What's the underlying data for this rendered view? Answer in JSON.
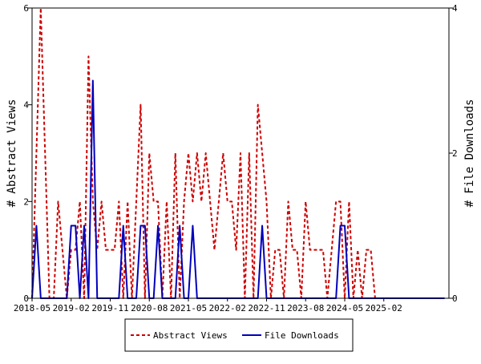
{
  "chart_data": {
    "type": "line",
    "title": "",
    "xlabel": "",
    "y_left_label": "# Abstract Views",
    "y_right_label": "# File Downloads",
    "y_left_lim": [
      0,
      6
    ],
    "y_right_lim": [
      0,
      4
    ],
    "y_left_ticks": [
      "0",
      "2",
      "4",
      "6"
    ],
    "y_right_ticks": [
      "0",
      "2",
      "4"
    ],
    "x_lim": [
      "2018-05",
      "2026-05"
    ],
    "x_ticks": [
      "2018-05",
      "2019-02",
      "2019-11",
      "2020-08",
      "2021-05",
      "2022-02",
      "2022-11",
      "2023-08",
      "2024-05",
      "2025-02"
    ],
    "grid": false,
    "legend_position": "bottom",
    "series": [
      {
        "name": "Abstract Views",
        "color": "#cc0000",
        "dash": "dashed",
        "axis": "left",
        "x": [
          "2018-05",
          "2018-06",
          "2018-07",
          "2018-08",
          "2018-09",
          "2018-10",
          "2018-11",
          "2018-12",
          "2019-01",
          "2019-02",
          "2019-03",
          "2019-04",
          "2019-05",
          "2019-06",
          "2019-07",
          "2019-08",
          "2019-09",
          "2019-10",
          "2019-11",
          "2019-12",
          "2020-01",
          "2020-02",
          "2020-03",
          "2020-04",
          "2020-05",
          "2020-06",
          "2020-07",
          "2020-08",
          "2020-09",
          "2020-10",
          "2020-11",
          "2020-12",
          "2021-01",
          "2021-02",
          "2021-03",
          "2021-04",
          "2021-05",
          "2021-06",
          "2021-07",
          "2021-08",
          "2021-09",
          "2021-10",
          "2021-11",
          "2021-12",
          "2022-01",
          "2022-02",
          "2022-03",
          "2022-04",
          "2022-05",
          "2022-06",
          "2022-07",
          "2022-08",
          "2022-09",
          "2022-10",
          "2022-11",
          "2022-12",
          "2023-01",
          "2023-02",
          "2023-03",
          "2023-04",
          "2023-05",
          "2023-06",
          "2023-07",
          "2023-08",
          "2023-09",
          "2023-10",
          "2023-11",
          "2023-12",
          "2024-01",
          "2024-02",
          "2024-03",
          "2024-04",
          "2024-05",
          "2024-06",
          "2024-07",
          "2024-08",
          "2024-09",
          "2024-10",
          "2024-11",
          "2024-12",
          "2025-01",
          "2025-02",
          "2025-03",
          "2025-04",
          "2025-05",
          "2025-06",
          "2025-07",
          "2025-08",
          "2025-09",
          "2025-10",
          "2025-11",
          "2025-12",
          "2026-01",
          "2026-02",
          "2026-03",
          "2026-04"
        ],
        "values": [
          0,
          3,
          6,
          3,
          0,
          0,
          2,
          1,
          0,
          1,
          1,
          2,
          0,
          5,
          2,
          1,
          2,
          1,
          1,
          1,
          2,
          0,
          2,
          0,
          2,
          4,
          0,
          3,
          2,
          2,
          0,
          2,
          0,
          3,
          0,
          2,
          3,
          2,
          3,
          2,
          3,
          2,
          1,
          2,
          3,
          2,
          2,
          1,
          3,
          0,
          3,
          0,
          4,
          3,
          2,
          0,
          1,
          1,
          0,
          2,
          1,
          1,
          0,
          2,
          1,
          1,
          1,
          1,
          0,
          1,
          2,
          2,
          0,
          2,
          0,
          1,
          0,
          1,
          1,
          0,
          0,
          0,
          0,
          0,
          0,
          0,
          0,
          0,
          0,
          0,
          0,
          0,
          0,
          0,
          0,
          0
        ]
      },
      {
        "name": "File Downloads",
        "color": "#0000bb",
        "dash": "solid",
        "axis": "right",
        "x": [
          "2018-05",
          "2018-06",
          "2018-07",
          "2018-08",
          "2018-09",
          "2018-10",
          "2018-11",
          "2018-12",
          "2019-01",
          "2019-02",
          "2019-03",
          "2019-04",
          "2019-05",
          "2019-06",
          "2019-07",
          "2019-08",
          "2019-09",
          "2019-10",
          "2019-11",
          "2019-12",
          "2020-01",
          "2020-02",
          "2020-03",
          "2020-04",
          "2020-05",
          "2020-06",
          "2020-07",
          "2020-08",
          "2020-09",
          "2020-10",
          "2020-11",
          "2020-12",
          "2021-01",
          "2021-02",
          "2021-03",
          "2021-04",
          "2021-05",
          "2021-06",
          "2021-07",
          "2021-08",
          "2021-09",
          "2021-10",
          "2021-11",
          "2021-12",
          "2022-01",
          "2022-02",
          "2022-03",
          "2022-04",
          "2022-05",
          "2022-06",
          "2022-07",
          "2022-08",
          "2022-09",
          "2022-10",
          "2022-11",
          "2022-12",
          "2023-01",
          "2023-02",
          "2023-03",
          "2023-04",
          "2023-05",
          "2023-06",
          "2023-07",
          "2023-08",
          "2023-09",
          "2023-10",
          "2023-11",
          "2023-12",
          "2024-01",
          "2024-02",
          "2024-03",
          "2024-04",
          "2024-05",
          "2024-06",
          "2024-07",
          "2024-08",
          "2024-09",
          "2024-10",
          "2024-11",
          "2024-12",
          "2025-01",
          "2025-02",
          "2025-03",
          "2025-04",
          "2025-05",
          "2025-06",
          "2025-07",
          "2025-08",
          "2025-09",
          "2025-10",
          "2025-11",
          "2025-12",
          "2026-01",
          "2026-02",
          "2026-03",
          "2026-04"
        ],
        "values": [
          0,
          1,
          0,
          0,
          0,
          0,
          0,
          0,
          0,
          1,
          1,
          0,
          1,
          0,
          3,
          0,
          0,
          0,
          0,
          0,
          0,
          1,
          0,
          0,
          0,
          1,
          1,
          0,
          0,
          1,
          0,
          0,
          0,
          0,
          1,
          0,
          0,
          1,
          0,
          0,
          0,
          0,
          0,
          0,
          0,
          0,
          0,
          0,
          0,
          0,
          0,
          0,
          0,
          1,
          0,
          0,
          0,
          0,
          0,
          0,
          0,
          0,
          0,
          0,
          0,
          0,
          0,
          0,
          0,
          0,
          0,
          1,
          1,
          0,
          0,
          0,
          0,
          0,
          0,
          0,
          0,
          0,
          0,
          0,
          0,
          0,
          0,
          0,
          0,
          0,
          0,
          0,
          0,
          0,
          0,
          0
        ]
      }
    ]
  }
}
